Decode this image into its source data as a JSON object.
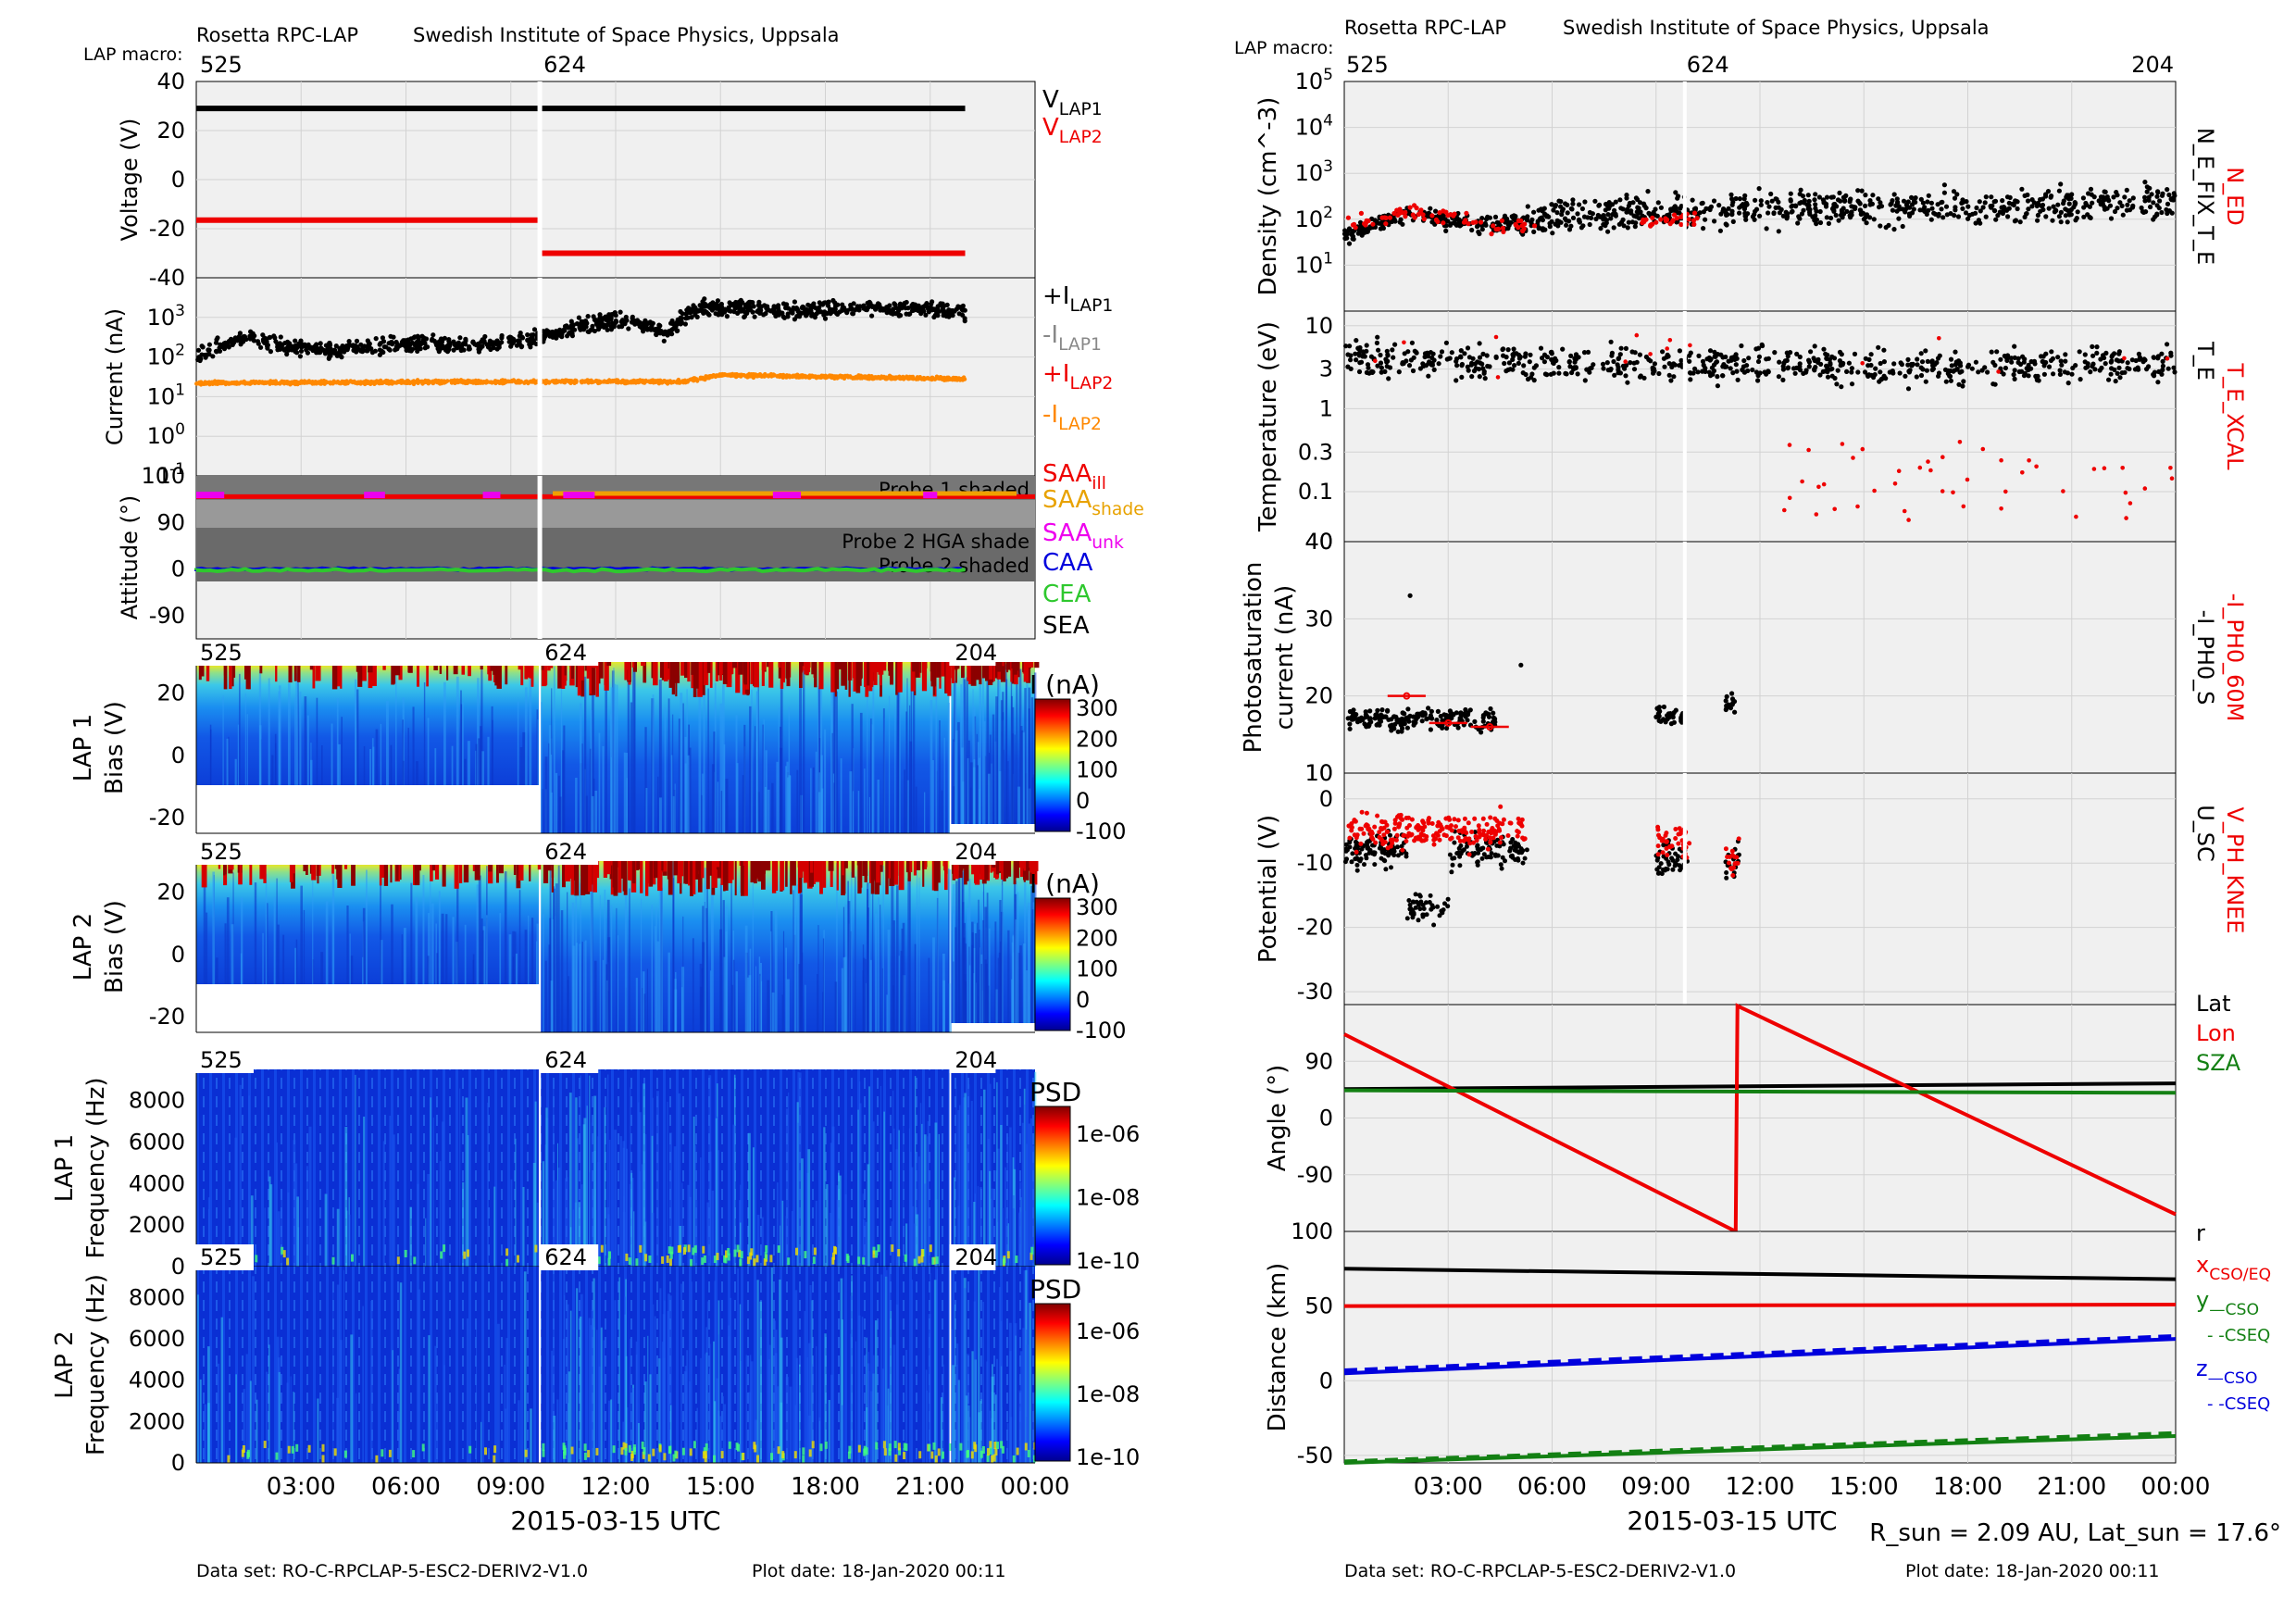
{
  "header": {
    "left": {
      "instrument": "Rosetta RPC-LAP",
      "institute": "Swedish Institute of Space Physics, Uppsala",
      "macro_label": "LAP macro:"
    },
    "right": {
      "instrument": "Rosetta RPC-LAP",
      "institute": "Swedish Institute of Space Physics, Uppsala",
      "macro_label": "LAP macro:"
    }
  },
  "footer": {
    "left": {
      "dataset": "Data set: RO-C-RPCLAP-5-ESC2-DERIV2-V1.0",
      "plotdate": "Plot date: 18-Jan-2020 00:11"
    },
    "right": {
      "dataset": "Data set: RO-C-RPCLAP-5-ESC2-DERIV2-V1.0",
      "plotdate": "Plot date: 18-Jan-2020 00:11"
    }
  },
  "rsun_note": "R_sun = 2.09 AU, Lat_sun = 17.6°",
  "colors": {
    "black": "#000000",
    "red": "#ee0000",
    "orange": "#ff8800",
    "gray": "#888888",
    "magenta": "#ee00ee",
    "blue": "#0000dd",
    "green": "#22bb22",
    "darkgreen": "#138013",
    "panel_bg": "#f0f0f0"
  },
  "chart_data": [
    {
      "type": "line",
      "id": "voltage",
      "ylabel": "Voltage (V)",
      "ylim": [
        -40,
        40
      ],
      "yticks": [
        "40",
        "20",
        "0",
        "-20",
        "-40"
      ],
      "macros": [
        {
          "label": "525",
          "t": 0
        },
        {
          "label": "624",
          "t": 9.83
        }
      ],
      "series": [
        {
          "name": "V_LAP1",
          "segments": [
            [
              [
                0,
                29
              ],
              [
                9.8,
                29
              ]
            ],
            [
              [
                9.86,
                29
              ],
              [
                22.0,
                29
              ]
            ]
          ]
        },
        {
          "name": "V_LAP2",
          "segments": [
            [
              [
                0,
                -16.5
              ],
              [
                9.8,
                -16.5
              ]
            ],
            [
              [
                9.86,
                -30
              ],
              [
                22.0,
                -30
              ]
            ]
          ]
        }
      ],
      "legend": [
        "V_LAP1",
        "V_LAP2"
      ]
    },
    {
      "type": "scatter",
      "id": "current",
      "ylabel": "Current (nA)",
      "yscale": "log",
      "ylim": [
        0.1,
        10000
      ],
      "yticks": [
        "10^3",
        "10^2",
        "10^1",
        "10^0",
        "10^-1"
      ],
      "series": [
        {
          "name": "+I_LAP1",
          "profile": [
            [
              0,
              100
            ],
            [
              1.5,
              300
            ],
            [
              2.5,
              180
            ],
            [
              4,
              140
            ],
            [
              6,
              220
            ],
            [
              8,
              200
            ],
            [
              9.8,
              300
            ],
            [
              11,
              600
            ],
            [
              12,
              900
            ],
            [
              13.5,
              400
            ],
            [
              14.5,
              1800
            ],
            [
              17,
              1500
            ],
            [
              20,
              1800
            ],
            [
              22,
              1300
            ]
          ]
        },
        {
          "name": "+I_LAP2",
          "profile": [
            [
              0,
              22
            ],
            [
              9.8,
              24
            ],
            [
              14,
              24
            ],
            [
              15,
              35
            ],
            [
              22,
              28
            ]
          ]
        }
      ],
      "legend": [
        "+I_LAP1",
        "-I_LAP1",
        "+I_LAP2",
        "-I_LAP2"
      ]
    },
    {
      "type": "line",
      "id": "attitude",
      "ylabel": "Attitude (°)",
      "ylim": [
        -135,
        180
      ],
      "yticks": [
        "90",
        "0",
        "-90"
      ],
      "bands": [
        "Probe 1 shaded",
        "Probe 2 HGA shade",
        "Probe 2 shaded"
      ],
      "series": [
        {
          "name": "SAA_ill",
          "level": 140
        },
        {
          "name": "SAA_shade",
          "level": 146
        },
        {
          "name": "CAA",
          "level": 0
        },
        {
          "name": "CEA",
          "level": -2
        }
      ],
      "legend": [
        "SAA_ill",
        "SAA_shade",
        "SAA_unk",
        "CAA",
        "CEA",
        "SEA"
      ]
    },
    {
      "type": "heatmap",
      "id": "lap1_bias",
      "ylabel_top": "LAP 1",
      "ylabel": "Bias (V)",
      "ylim": [
        -25,
        30
      ],
      "yticks": [
        "20",
        "0",
        "-20"
      ],
      "colorbar": {
        "label": "I (nA)",
        "ticks": [
          "300",
          "200",
          "100",
          "0",
          "-100"
        ]
      },
      "macros": [
        "525",
        "624",
        "204"
      ]
    },
    {
      "type": "heatmap",
      "id": "lap2_bias",
      "ylabel_top": "LAP 2",
      "ylabel": "Bias (V)",
      "ylim": [
        -25,
        30
      ],
      "yticks": [
        "20",
        "0",
        "-20"
      ],
      "colorbar": {
        "label": "I (nA)",
        "ticks": [
          "300",
          "200",
          "100",
          "0",
          "-100"
        ]
      },
      "macros": [
        "525",
        "624",
        "204"
      ]
    },
    {
      "type": "heatmap",
      "id": "lap1_psd",
      "ylabel_top": "LAP 1",
      "ylabel": "Frequency (Hz)",
      "ylim": [
        0,
        9500
      ],
      "yticks": [
        "8000",
        "6000",
        "4000",
        "2000",
        "0"
      ],
      "colorbar": {
        "label": "PSD",
        "ticks": [
          "1e-06",
          "1e-08",
          "1e-10"
        ]
      },
      "macros": [
        "525",
        "624",
        "204"
      ]
    },
    {
      "type": "heatmap",
      "id": "lap2_psd",
      "ylabel_top": "LAP 2",
      "ylabel": "Frequency (Hz)",
      "ylim": [
        0,
        9500
      ],
      "yticks": [
        "8000",
        "6000",
        "4000",
        "2000",
        "0"
      ],
      "colorbar": {
        "label": "PSD",
        "ticks": [
          "1e-06",
          "1e-08",
          "1e-10"
        ]
      },
      "macros": [
        "525",
        "624",
        "204"
      ]
    },
    {
      "type": "scatter",
      "id": "density",
      "ylabel": "Density (cm^-3)",
      "yscale": "log",
      "ylim": [
        1,
        100000
      ],
      "yticks": [
        "10^5",
        "10^4",
        "10^3",
        "10^2",
        "10^1"
      ],
      "macros": [
        {
          "label": "525",
          "t": 0
        },
        {
          "label": "624",
          "t": 9.83
        },
        {
          "label": "204",
          "t": 24
        }
      ],
      "series": [
        {
          "name": "N_E_FIX_T_E",
          "profile": [
            [
              0,
              40
            ],
            [
              2,
              120
            ],
            [
              4,
              70
            ],
            [
              6,
              110
            ],
            [
              9,
              150
            ],
            [
              12,
              160
            ],
            [
              16,
              180
            ],
            [
              20,
              200
            ],
            [
              24,
              250
            ]
          ]
        },
        {
          "name": "N_ED",
          "profile": [
            [
              0,
              60
            ],
            [
              2,
              150
            ],
            [
              4,
              70
            ],
            [
              10,
              100
            ]
          ]
        }
      ],
      "legend": [
        "N_ED",
        "N_E_FIX_T_E"
      ]
    },
    {
      "type": "scatter",
      "id": "temperature",
      "ylabel": "Temperature (eV)",
      "yscale": "log",
      "ylim": [
        0.025,
        15
      ],
      "yticks": [
        "10",
        "3",
        "1",
        "0.3",
        "0.1"
      ],
      "series": [
        {
          "name": "T_E",
          "profile": [
            [
              0,
              4
            ],
            [
              6,
              3.5
            ],
            [
              12,
              3.5
            ],
            [
              18,
              3
            ],
            [
              24,
              3.5
            ]
          ]
        },
        {
          "name": "T_E_XCAL",
          "profile": [
            [
              0,
              3
            ],
            [
              24,
              0.2
            ]
          ]
        }
      ],
      "legend": [
        "T_E_XCAL",
        "T_E"
      ]
    },
    {
      "type": "scatter",
      "id": "photosat",
      "ylabel": "Photosaturation current (nA)",
      "ylim": [
        10,
        40
      ],
      "yticks": [
        "40",
        "30",
        "20",
        "10"
      ],
      "series": [
        {
          "name": "-I_PH0_S",
          "clusters": [
            [
              0.1,
              4.4,
              17
            ],
            [
              9.0,
              9.8,
              17.5
            ],
            [
              11.0,
              11.3,
              19
            ]
          ]
        },
        {
          "name": "-I_PH0_60M",
          "points": [
            [
              1.8,
              20
            ],
            [
              3.0,
              16.5
            ],
            [
              4.2,
              16
            ]
          ]
        }
      ],
      "legend": [
        "-I_PH0_60M",
        "-I_PH0_S"
      ]
    },
    {
      "type": "scatter",
      "id": "potential",
      "ylabel": "Potential (V)",
      "ylim": [
        -32,
        4
      ],
      "yticks": [
        "0",
        "-10",
        "-20",
        "-30"
      ],
      "series": [
        {
          "name": "U_SC",
          "clusters": [
            [
              0,
              5.3,
              -8
            ],
            [
              9.0,
              10.0,
              -9
            ],
            [
              11.0,
              11.4,
              -10
            ]
          ]
        },
        {
          "name": "V_PH_KNEE",
          "clusters": [
            [
              0,
              5.3,
              -5
            ],
            [
              9.0,
              10.0,
              -7
            ],
            [
              11.0,
              11.4,
              -9
            ]
          ]
        }
      ],
      "legend": [
        "V_PH_KNEE",
        "U_SC"
      ]
    },
    {
      "type": "line",
      "id": "angle",
      "ylabel": "Angle (°)",
      "ylim": [
        -180,
        180
      ],
      "yticks": [
        "90",
        "0",
        "-90"
      ],
      "series": [
        {
          "name": "Lat",
          "points": [
            [
              0,
              46
            ],
            [
              24,
              55
            ]
          ]
        },
        {
          "name": "Lon",
          "points": [
            [
              0,
              133
            ],
            [
              11.3,
              -180
            ],
            [
              11.35,
              178
            ],
            [
              24,
              -153
            ]
          ]
        },
        {
          "name": "SZA",
          "points": [
            [
              0,
              44
            ],
            [
              24,
              40
            ]
          ]
        }
      ],
      "legend": [
        "Lat",
        "Lon",
        "SZA"
      ]
    },
    {
      "type": "line",
      "id": "distance",
      "ylabel": "Distance (km)",
      "ylim": [
        -55,
        100
      ],
      "yticks": [
        "50",
        "0",
        "-50"
      ],
      "series": [
        {
          "name": "r",
          "points": [
            [
              0,
              75
            ],
            [
              24,
              68
            ]
          ]
        },
        {
          "name": "x_CSO/EQ",
          "points": [
            [
              0,
              50
            ],
            [
              24,
              51
            ]
          ]
        },
        {
          "name": "y_CSO",
          "points": [
            [
              0,
              -55
            ],
            [
              24,
              -37
            ]
          ]
        },
        {
          "name": "y_CSEQ",
          "points": [
            [
              0,
              -54
            ],
            [
              24,
              -35
            ]
          ]
        },
        {
          "name": "z_CSO",
          "points": [
            [
              0,
              5
            ],
            [
              24,
              28
            ]
          ]
        },
        {
          "name": "z_CSEQ",
          "points": [
            [
              0,
              7
            ],
            [
              24,
              30
            ]
          ]
        }
      ],
      "legend": [
        "r",
        "x_CSO/EQ",
        "y_—CSO",
        "- -CSEQ",
        "z_—CSO",
        "- -CSEQ"
      ]
    }
  ],
  "xaxis": {
    "ticks": [
      "03:00",
      "06:00",
      "09:00",
      "12:00",
      "15:00",
      "18:00",
      "21:00",
      "00:00"
    ],
    "label": "2015-03-15 UTC"
  }
}
